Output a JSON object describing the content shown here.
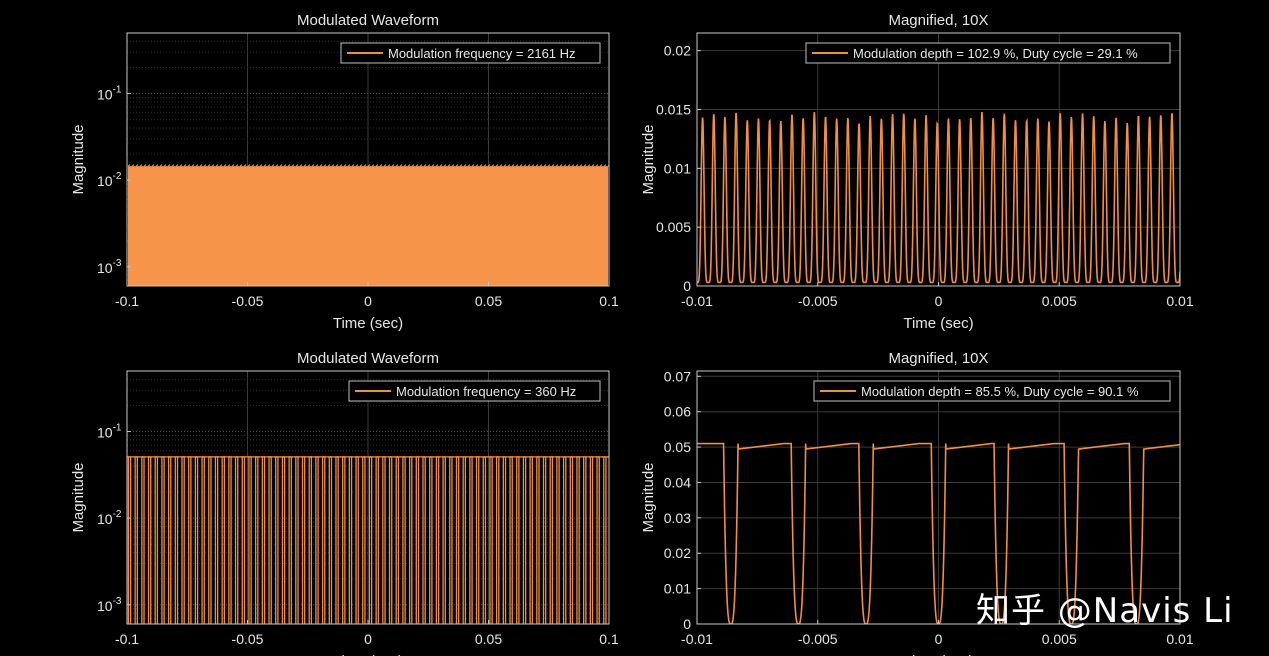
{
  "colors": {
    "background": "#000000",
    "axes": "#c8c8c8",
    "grid": "#3a3a3a",
    "text": "#e6e6e6",
    "trace": "#f28e43",
    "fill": "#f6954a"
  },
  "watermark": "知乎 @Navis Li",
  "chart_data": [
    {
      "type": "line",
      "title": "Modulated Waveform",
      "xlabel": "Time (sec)",
      "ylabel": "Magnitude",
      "yscale": "log",
      "xlim": [
        -0.1,
        0.1
      ],
      "ylim": [
        0.0006,
        0.5
      ],
      "xticks": [
        -0.1,
        -0.05,
        0,
        0.05,
        0.1
      ],
      "xtick_labels": [
        "-0.1",
        "-0.05",
        "0",
        "0.05",
        "0.1"
      ],
      "yticks": [
        0.001,
        0.01,
        0.1
      ],
      "ytick_labels": [
        {
          "base": "10",
          "exp": "-3"
        },
        {
          "base": "10",
          "exp": "-2"
        },
        {
          "base": "10",
          "exp": "-1"
        }
      ],
      "grid": true,
      "legend": "Modulation frequency = 2161 Hz",
      "legend_position": "top-right",
      "series": [
        {
          "name": "Modulation frequency = 2161 Hz",
          "frequency_hz": 2161,
          "max": 0.0145,
          "min": 0.0006,
          "rendering": "filled"
        }
      ]
    },
    {
      "type": "line",
      "title": "Magnified, 10X",
      "xlabel": "Time (sec)",
      "ylabel": "Magnitude",
      "yscale": "linear",
      "xlim": [
        -0.01,
        0.01
      ],
      "ylim": [
        0,
        0.0215
      ],
      "xticks": [
        -0.01,
        -0.005,
        0,
        0.005,
        0.01
      ],
      "xtick_labels": [
        "-0.01",
        "-0.005",
        "0",
        "0.005",
        "0.01"
      ],
      "yticks": [
        0,
        0.005,
        0.01,
        0.015,
        0.02
      ],
      "ytick_labels": [
        "0",
        "0.005",
        "0.01",
        "0.015",
        "0.02"
      ],
      "grid": true,
      "legend": "Modulation depth = 102.9 %, Duty cycle = 29.1 %",
      "legend_position": "top-right",
      "series": [
        {
          "name": "Modulation depth = 102.9 %, Duty cycle = 29.1 %",
          "frequency_hz": 2161,
          "peak": 0.0147,
          "trough": 0.0003,
          "duty_cycle": 0.291
        }
      ]
    },
    {
      "type": "line",
      "title": "Modulated Waveform",
      "xlabel": "Time (sec)",
      "ylabel": "Magnitude",
      "yscale": "log",
      "xlim": [
        -0.1,
        0.1
      ],
      "ylim": [
        0.0006,
        0.5
      ],
      "xticks": [
        -0.1,
        -0.05,
        0,
        0.05,
        0.1
      ],
      "xtick_labels": [
        "-0.1",
        "-0.05",
        "0",
        "0.05",
        "0.1"
      ],
      "yticks": [
        0.001,
        0.01,
        0.1
      ],
      "ytick_labels": [
        {
          "base": "10",
          "exp": "-3"
        },
        {
          "base": "10",
          "exp": "-2"
        },
        {
          "base": "10",
          "exp": "-1"
        }
      ],
      "grid": true,
      "legend": "Modulation frequency = 360 Hz",
      "legend_position": "top-right",
      "series": [
        {
          "name": "Modulation frequency = 360 Hz",
          "frequency_hz": 360,
          "max": 0.051,
          "min": 0.0006,
          "rendering": "pulse-train"
        }
      ]
    },
    {
      "type": "line",
      "title": "Magnified, 10X",
      "xlabel": "Time (sec)",
      "ylabel": "Magnitude",
      "yscale": "linear",
      "xlim": [
        -0.01,
        0.01
      ],
      "ylim": [
        0,
        0.0715
      ],
      "xticks": [
        -0.01,
        -0.005,
        0,
        0.005,
        0.01
      ],
      "xtick_labels": [
        "-0.01",
        "-0.005",
        "0",
        "0.005",
        "0.01"
      ],
      "yticks": [
        0,
        0.01,
        0.02,
        0.03,
        0.04,
        0.05,
        0.06,
        0.07
      ],
      "ytick_labels": [
        "0",
        "0.01",
        "0.02",
        "0.03",
        "0.04",
        "0.05",
        "0.06",
        "0.07"
      ],
      "grid": true,
      "legend": "Modulation depth = 85.5 %, Duty cycle = 90.1 %",
      "legend_position": "top-right",
      "series": [
        {
          "name": "Modulation depth = 85.5 %, Duty cycle = 90.1 %",
          "high": 0.051,
          "low": 0.0,
          "dip_centers": [
            -0.0086,
            -0.0058,
            -0.003,
            0.0,
            0.0026,
            0.0055,
            0.0082
          ],
          "dip_width": 0.0006
        }
      ]
    }
  ]
}
